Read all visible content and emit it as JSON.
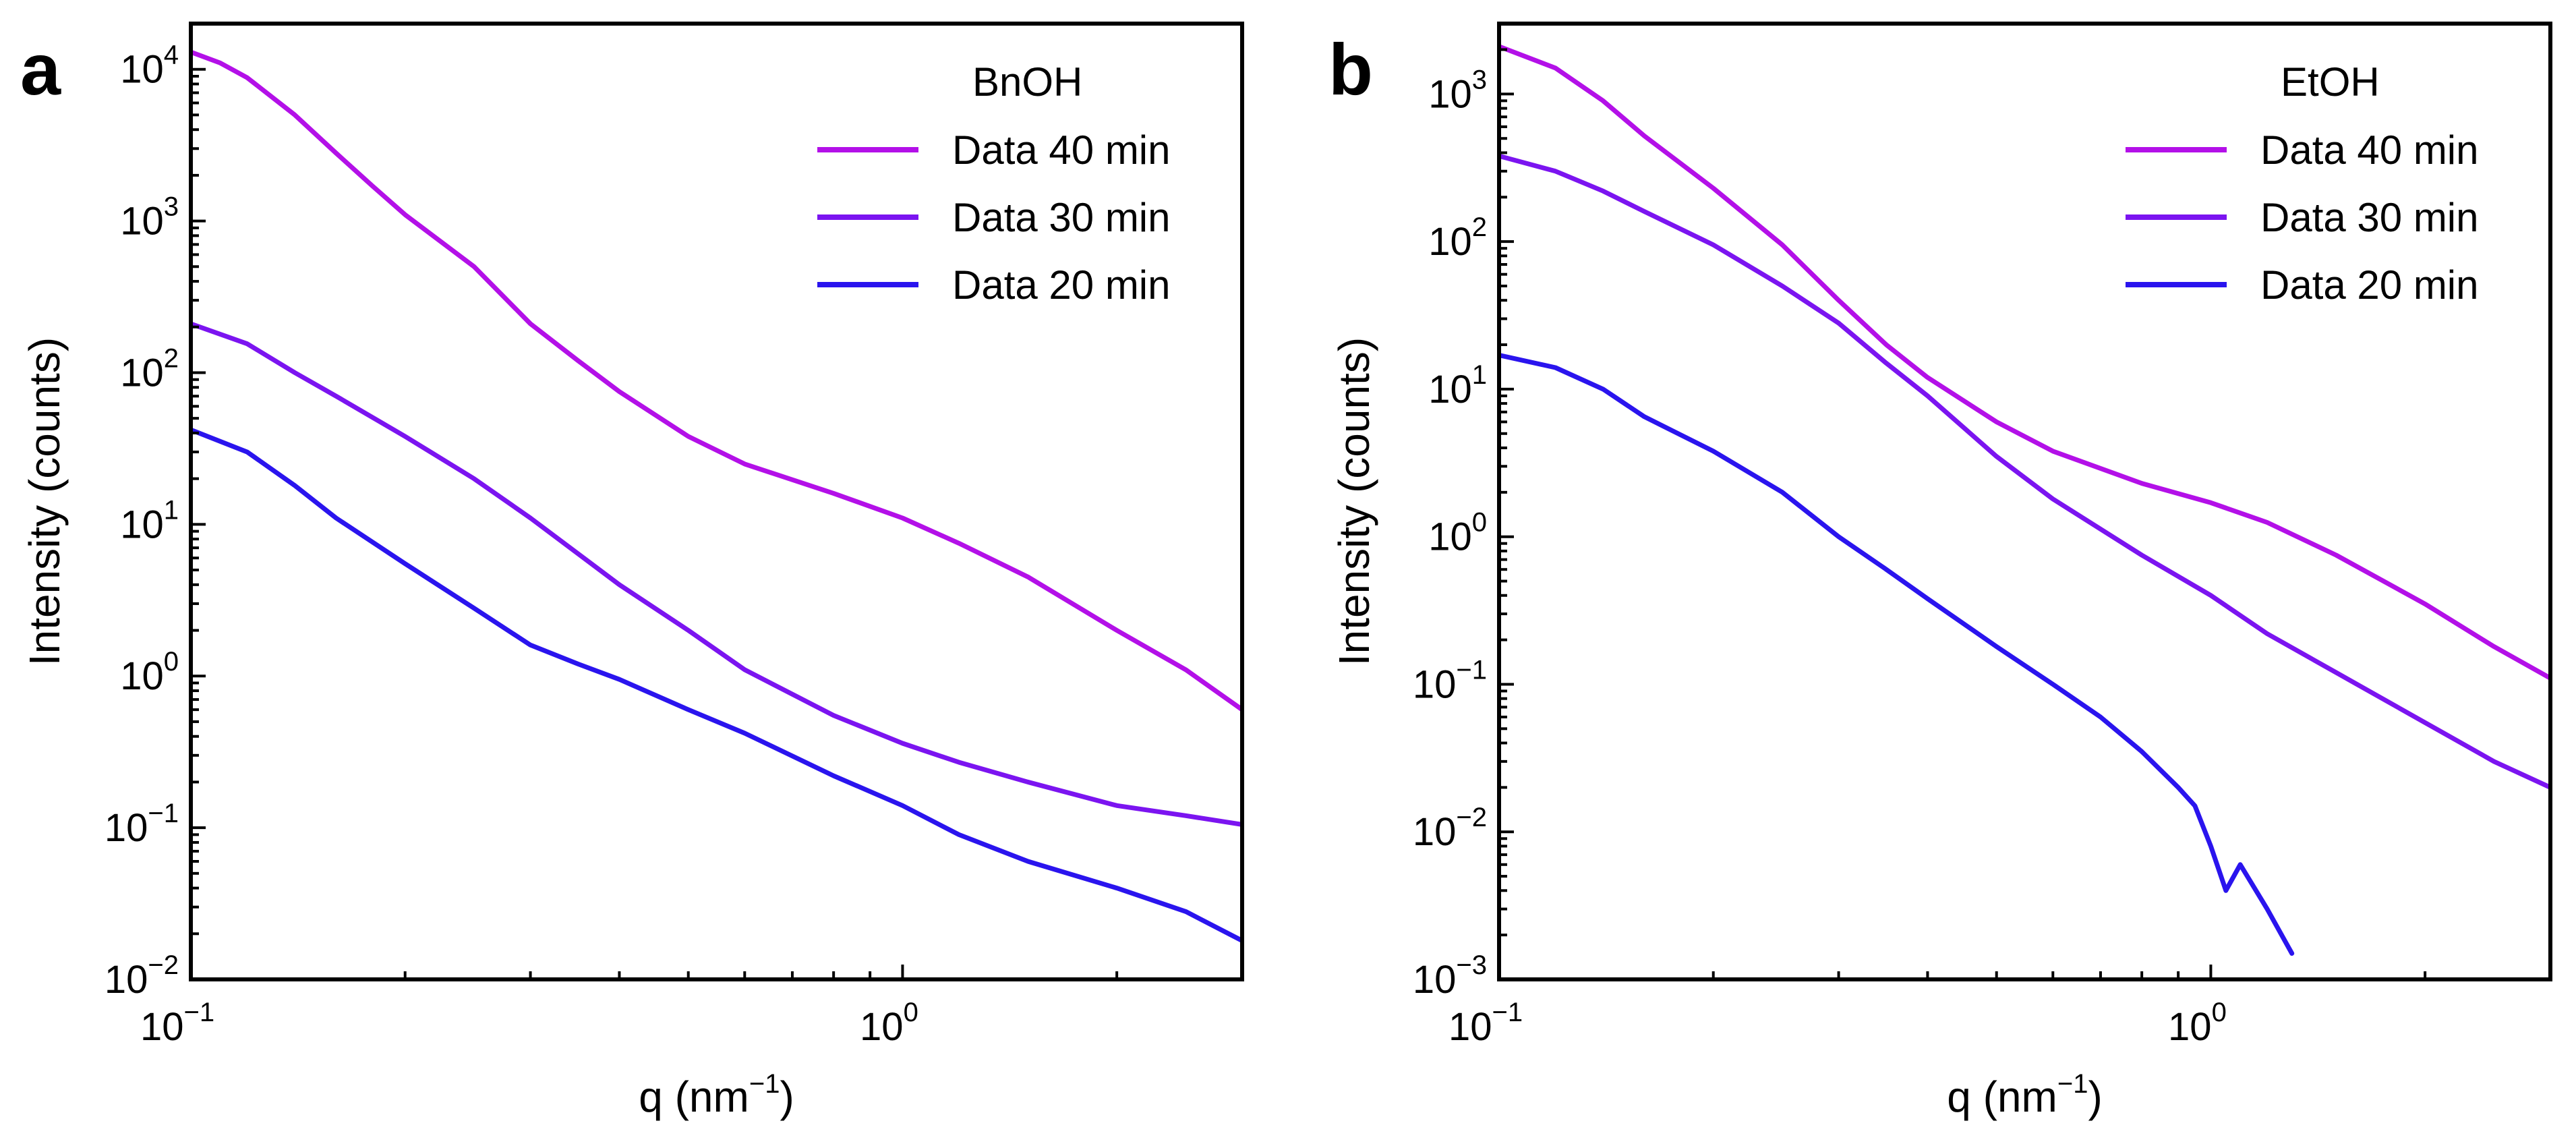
{
  "chart_data": [
    {
      "type": "line",
      "panel_label": "a",
      "legend_title": "BnOH",
      "legend_position": "top-right",
      "xlabel": "q (nm",
      "xlabel_sup": "−1",
      "xlabel_end": ")",
      "ylabel": "Intensity (counts)",
      "xscale": "log",
      "yscale": "log",
      "xlim": [
        0.1,
        3.0
      ],
      "ylim": [
        0.01,
        20000
      ],
      "x_ticks": [
        {
          "base": "10",
          "exp": "−1",
          "value": 0.1
        },
        {
          "base": "10",
          "exp": "0",
          "value": 1
        }
      ],
      "y_ticks": [
        {
          "base": "10",
          "exp": "−2",
          "value": 0.01
        },
        {
          "base": "10",
          "exp": "−1",
          "value": 0.1
        },
        {
          "base": "10",
          "exp": "0",
          "value": 1
        },
        {
          "base": "10",
          "exp": "1",
          "value": 10
        },
        {
          "base": "10",
          "exp": "2",
          "value": 100
        },
        {
          "base": "10",
          "exp": "3",
          "value": 1000
        },
        {
          "base": "10",
          "exp": "4",
          "value": 10000
        }
      ],
      "series": [
        {
          "name": "Data 40 min",
          "color": "#b310e8",
          "x": [
            0.1,
            0.11,
            0.12,
            0.14,
            0.16,
            0.18,
            0.2,
            0.25,
            0.3,
            0.35,
            0.4,
            0.5,
            0.6,
            0.8,
            1.0,
            1.2,
            1.5,
            2.0,
            2.5,
            3.0
          ],
          "y": [
            13000,
            11000,
            8800,
            5000,
            2800,
            1700,
            1100,
            500,
            210,
            120,
            75,
            38,
            25,
            16,
            11,
            7.5,
            4.5,
            2.0,
            1.1,
            0.6
          ]
        },
        {
          "name": "Data 30 min",
          "color": "#7b14f0",
          "x": [
            0.1,
            0.12,
            0.14,
            0.16,
            0.2,
            0.25,
            0.3,
            0.4,
            0.5,
            0.6,
            0.8,
            1.0,
            1.2,
            1.5,
            2.0,
            2.5,
            3.0
          ],
          "y": [
            210,
            155,
            100,
            70,
            38,
            20,
            11,
            4.0,
            2.0,
            1.1,
            0.55,
            0.36,
            0.27,
            0.2,
            0.14,
            0.12,
            0.105
          ]
        },
        {
          "name": "Data 20 min",
          "color": "#2a14ee",
          "x": [
            0.1,
            0.12,
            0.14,
            0.16,
            0.2,
            0.25,
            0.3,
            0.35,
            0.4,
            0.5,
            0.6,
            0.8,
            1.0,
            1.2,
            1.5,
            2.0,
            2.5,
            3.0
          ],
          "y": [
            42,
            30,
            18,
            11,
            5.5,
            2.8,
            1.6,
            1.2,
            0.95,
            0.6,
            0.42,
            0.22,
            0.14,
            0.09,
            0.06,
            0.04,
            0.028,
            0.018
          ]
        }
      ]
    },
    {
      "type": "line",
      "panel_label": "b",
      "legend_title": "EtOH",
      "legend_position": "top-right",
      "xlabel": "q (nm",
      "xlabel_sup": "−1",
      "xlabel_end": ")",
      "ylabel": "Intensity (counts)",
      "xscale": "log",
      "yscale": "log",
      "xlim": [
        0.1,
        3.0
      ],
      "ylim": [
        0.001,
        3000
      ],
      "x_ticks": [
        {
          "base": "10",
          "exp": "−1",
          "value": 0.1
        },
        {
          "base": "10",
          "exp": "0",
          "value": 1
        }
      ],
      "y_ticks": [
        {
          "base": "10",
          "exp": "−3",
          "value": 0.001
        },
        {
          "base": "10",
          "exp": "−2",
          "value": 0.01
        },
        {
          "base": "10",
          "exp": "−1",
          "value": 0.1
        },
        {
          "base": "10",
          "exp": "0",
          "value": 1
        },
        {
          "base": "10",
          "exp": "1",
          "value": 10
        },
        {
          "base": "10",
          "exp": "2",
          "value": 100
        },
        {
          "base": "10",
          "exp": "3",
          "value": 1000
        }
      ],
      "series": [
        {
          "name": "Data 40 min",
          "color": "#b310e8",
          "x": [
            0.1,
            0.12,
            0.14,
            0.16,
            0.2,
            0.25,
            0.3,
            0.35,
            0.4,
            0.5,
            0.6,
            0.8,
            1.0,
            1.2,
            1.5,
            2.0,
            2.5,
            3.0
          ],
          "y": [
            2100,
            1500,
            900,
            520,
            230,
            95,
            40,
            20,
            12,
            6.0,
            3.8,
            2.3,
            1.7,
            1.25,
            0.75,
            0.35,
            0.18,
            0.11
          ]
        },
        {
          "name": "Data 30 min",
          "color": "#7b14f0",
          "x": [
            0.1,
            0.12,
            0.14,
            0.16,
            0.2,
            0.25,
            0.3,
            0.35,
            0.4,
            0.5,
            0.6,
            0.8,
            1.0,
            1.2,
            1.5,
            2.0,
            2.5,
            3.0
          ],
          "y": [
            380,
            300,
            220,
            160,
            95,
            50,
            28,
            15,
            9.0,
            3.5,
            1.8,
            0.75,
            0.4,
            0.22,
            0.12,
            0.055,
            0.03,
            0.02
          ]
        },
        {
          "name": "Data 20 min",
          "color": "#2a14ee",
          "x": [
            0.1,
            0.12,
            0.14,
            0.16,
            0.2,
            0.25,
            0.3,
            0.35,
            0.4,
            0.5,
            0.6,
            0.7,
            0.8,
            0.9,
            0.95,
            1.0,
            1.05,
            1.1,
            1.2,
            1.3
          ],
          "y": [
            17,
            14,
            10,
            6.5,
            3.8,
            2.0,
            1.0,
            0.6,
            0.38,
            0.18,
            0.1,
            0.06,
            0.035,
            0.02,
            0.015,
            0.008,
            0.004,
            0.006,
            0.003,
            0.0015
          ]
        }
      ]
    }
  ]
}
